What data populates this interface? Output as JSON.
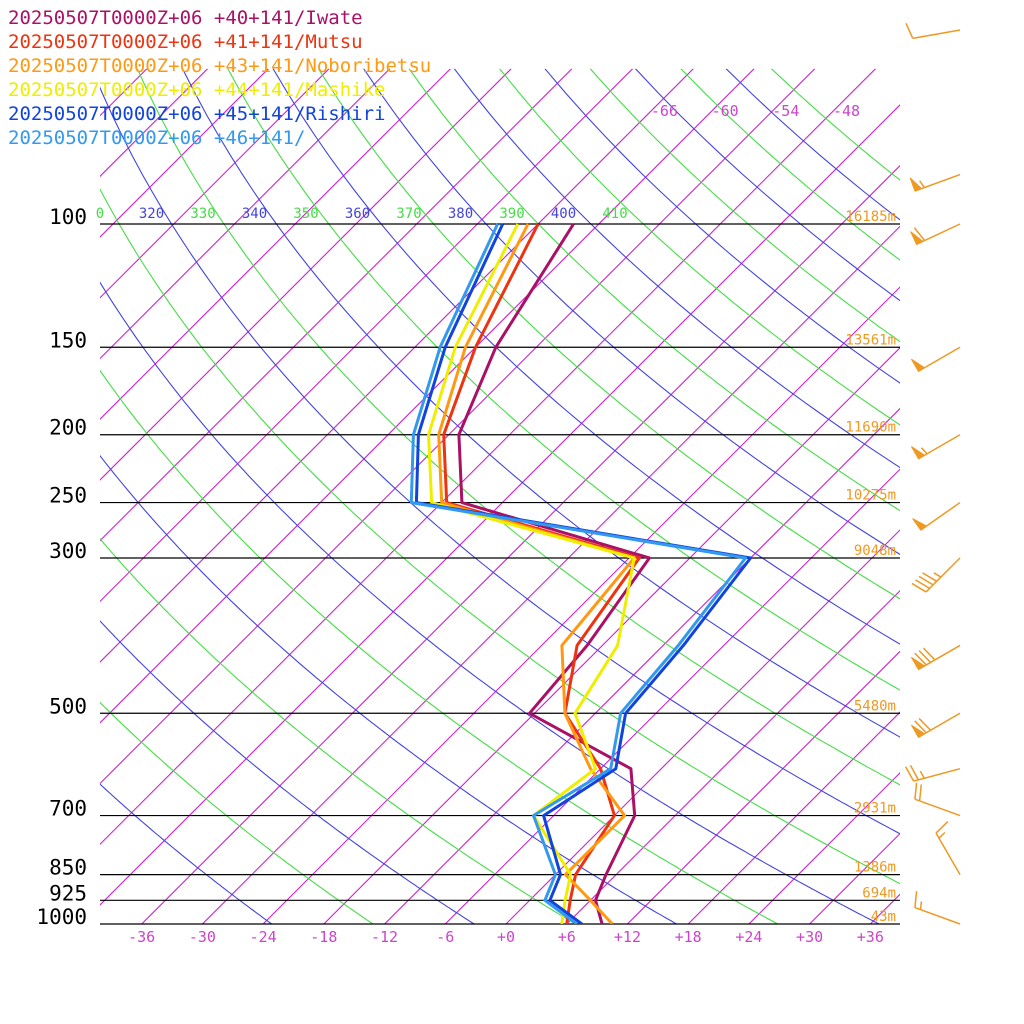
{
  "chart_data": {
    "type": "line",
    "subtype": "skew-t sounding",
    "legend": [
      {
        "text": "20250507T0000Z+06 +40+141/Iwate",
        "color": "#aa1166"
      },
      {
        "text": "20250507T0000Z+06 +41+141/Mutsu",
        "color": "#ee3311"
      },
      {
        "text": "20250507T0000Z+06 +43+141/Noboribetsu",
        "color": "#ff9911"
      },
      {
        "text": "20250507T0000Z+06 +44+141/Mashike",
        "color": "#eeee00"
      },
      {
        "text": "20250507T0000Z+06 +45+141/Rishiri",
        "color": "#1144dd"
      },
      {
        "text": "20250507T0000Z+06 +46+141/",
        "color": "#3399ee"
      }
    ],
    "pressure_levels": [
      100,
      150,
      200,
      250,
      300,
      500,
      700,
      850,
      925,
      1000
    ],
    "pressure_labels": [
      "100",
      "150",
      "200",
      "250",
      "300",
      "500",
      "700",
      "850",
      "925",
      "1000"
    ],
    "height_labels": [
      {
        "p": 100,
        "text": "16185m"
      },
      {
        "p": 150,
        "text": "13561m"
      },
      {
        "p": 200,
        "text": "11690m"
      },
      {
        "p": 250,
        "text": "10275m"
      },
      {
        "p": 300,
        "text": "9048m"
      },
      {
        "p": 500,
        "text": "5480m"
      },
      {
        "p": 700,
        "text": "2931m"
      },
      {
        "p": 850,
        "text": "1386m"
      },
      {
        "p": 925,
        "text": "694m"
      },
      {
        "p": 1000,
        "text": "43m"
      }
    ],
    "temperature_ticks": [
      "-36",
      "-30",
      "-24",
      "-18",
      "-12",
      "-6",
      "+0",
      "+6",
      "+12",
      "+18",
      "+24",
      "+30",
      "+36"
    ],
    "upper_temperature_ticks": [
      "-66",
      "-60",
      "-54",
      "-48"
    ],
    "theta_labels": [
      {
        "text": "0",
        "color": "#44dd44"
      },
      {
        "text": "320",
        "color": "#4444dd"
      },
      {
        "text": "330",
        "color": "#44dd44"
      },
      {
        "text": "340",
        "color": "#4444dd"
      },
      {
        "text": "350",
        "color": "#44dd44"
      },
      {
        "text": "360",
        "color": "#4444dd"
      },
      {
        "text": "370",
        "color": "#44dd44"
      },
      {
        "text": "380",
        "color": "#4444dd"
      },
      {
        "text": "390",
        "color": "#44dd44"
      },
      {
        "text": "400",
        "color": "#4444dd"
      },
      {
        "text": "410",
        "color": "#44dd44"
      }
    ],
    "series": [
      {
        "name": "20250507T0000Z+06 +40+141/Iwate",
        "color": "#aa1166",
        "points": [
          [
            1000,
            9.5
          ],
          [
            925,
            6.5
          ],
          [
            850,
            5.0
          ],
          [
            700,
            2.0
          ],
          [
            600,
            -3.0
          ],
          [
            500,
            -18.5
          ],
          [
            400,
            -19.5
          ],
          [
            300,
            -22.0
          ],
          [
            250,
            -46.0
          ],
          [
            200,
            -53.0
          ],
          [
            150,
            -58.0
          ],
          [
            100,
            -62.5
          ]
        ]
      },
      {
        "name": "20250507T0000Z+06 +41+141/Mutsu",
        "color": "#ee3311",
        "points": [
          [
            1000,
            6.0
          ],
          [
            925,
            4.0
          ],
          [
            850,
            2.0
          ],
          [
            700,
            0.0
          ],
          [
            600,
            -6.0
          ],
          [
            500,
            -15.0
          ],
          [
            400,
            -20.5
          ],
          [
            300,
            -23.0
          ],
          [
            250,
            -47.5
          ],
          [
            200,
            -54.5
          ],
          [
            150,
            -60.0
          ],
          [
            100,
            -66.0
          ]
        ]
      },
      {
        "name": "20250507T0000Z+06 +43+141/Noboribetsu",
        "color": "#ff9911",
        "points": [
          [
            1000,
            10.5
          ],
          [
            925,
            6.0
          ],
          [
            850,
            1.0
          ],
          [
            700,
            1.0
          ],
          [
            600,
            -7.0
          ],
          [
            500,
            -15.0
          ],
          [
            400,
            -22.0
          ],
          [
            300,
            -23.5
          ],
          [
            250,
            -48.0
          ],
          [
            200,
            -55.0
          ],
          [
            150,
            -61.0
          ],
          [
            100,
            -67.0
          ]
        ]
      },
      {
        "name": "20250507T0000Z+06 +44+141/Mashike",
        "color": "#eeee00",
        "points": [
          [
            1000,
            5.5
          ],
          [
            925,
            3.5
          ],
          [
            850,
            1.5
          ],
          [
            700,
            -8.0
          ],
          [
            600,
            -6.5
          ],
          [
            500,
            -14.0
          ],
          [
            400,
            -16.5
          ],
          [
            300,
            -23.5
          ],
          [
            250,
            -49.0
          ],
          [
            200,
            -56.0
          ],
          [
            150,
            -62.0
          ],
          [
            100,
            -68.0
          ]
        ]
      },
      {
        "name": "20250507T0000Z+06 +45+141/Rishiri",
        "color": "#1144dd",
        "points": [
          [
            1000,
            7.5
          ],
          [
            925,
            2.0
          ],
          [
            850,
            0.5
          ],
          [
            700,
            -7.0
          ],
          [
            600,
            -4.5
          ],
          [
            500,
            -9.0
          ],
          [
            400,
            -10.0
          ],
          [
            300,
            -12.0
          ],
          [
            250,
            -50.5
          ],
          [
            200,
            -57.0
          ],
          [
            150,
            -63.0
          ],
          [
            100,
            -69.5
          ]
        ]
      },
      {
        "name": "20250507T0000Z+06 +46+141/",
        "color": "#3399ee",
        "points": [
          [
            1000,
            7.0
          ],
          [
            925,
            1.5
          ],
          [
            850,
            0.0
          ],
          [
            700,
            -8.0
          ],
          [
            600,
            -5.0
          ],
          [
            500,
            -9.5
          ],
          [
            400,
            -10.5
          ],
          [
            300,
            -12.5
          ],
          [
            250,
            -51.0
          ],
          [
            200,
            -57.5
          ],
          [
            150,
            -63.5
          ],
          [
            100,
            -70.0
          ]
        ]
      }
    ],
    "wind_barbs": [
      {
        "p": 60,
        "speed_kt": 10,
        "dir_deg": 260
      },
      {
        "p": 85,
        "speed_kt": 55,
        "dir_deg": 250
      },
      {
        "p": 100,
        "speed_kt": 60,
        "dir_deg": 245
      },
      {
        "p": 150,
        "speed_kt": 50,
        "dir_deg": 240
      },
      {
        "p": 200,
        "speed_kt": 55,
        "dir_deg": 240
      },
      {
        "p": 250,
        "speed_kt": 50,
        "dir_deg": 235
      },
      {
        "p": 300,
        "speed_kt": 45,
        "dir_deg": 225
      },
      {
        "p": 400,
        "speed_kt": 80,
        "dir_deg": 240
      },
      {
        "p": 500,
        "speed_kt": 70,
        "dir_deg": 240
      },
      {
        "p": 600,
        "speed_kt": 25,
        "dir_deg": 255
      },
      {
        "p": 700,
        "speed_kt": 20,
        "dir_deg": 290
      },
      {
        "p": 850,
        "speed_kt": 15,
        "dir_deg": 330
      },
      {
        "p": 1000,
        "speed_kt": 15,
        "dir_deg": 290
      }
    ],
    "colors": {
      "isotherm": "#cc22cc",
      "dry_adiabat": "#4444dd",
      "moist_adiabat": "#44dd44",
      "isobar": "#000000",
      "wind_barb": "#ee9922",
      "height_label": "#ee9922",
      "temperature_tick": "#cc44cc"
    }
  }
}
